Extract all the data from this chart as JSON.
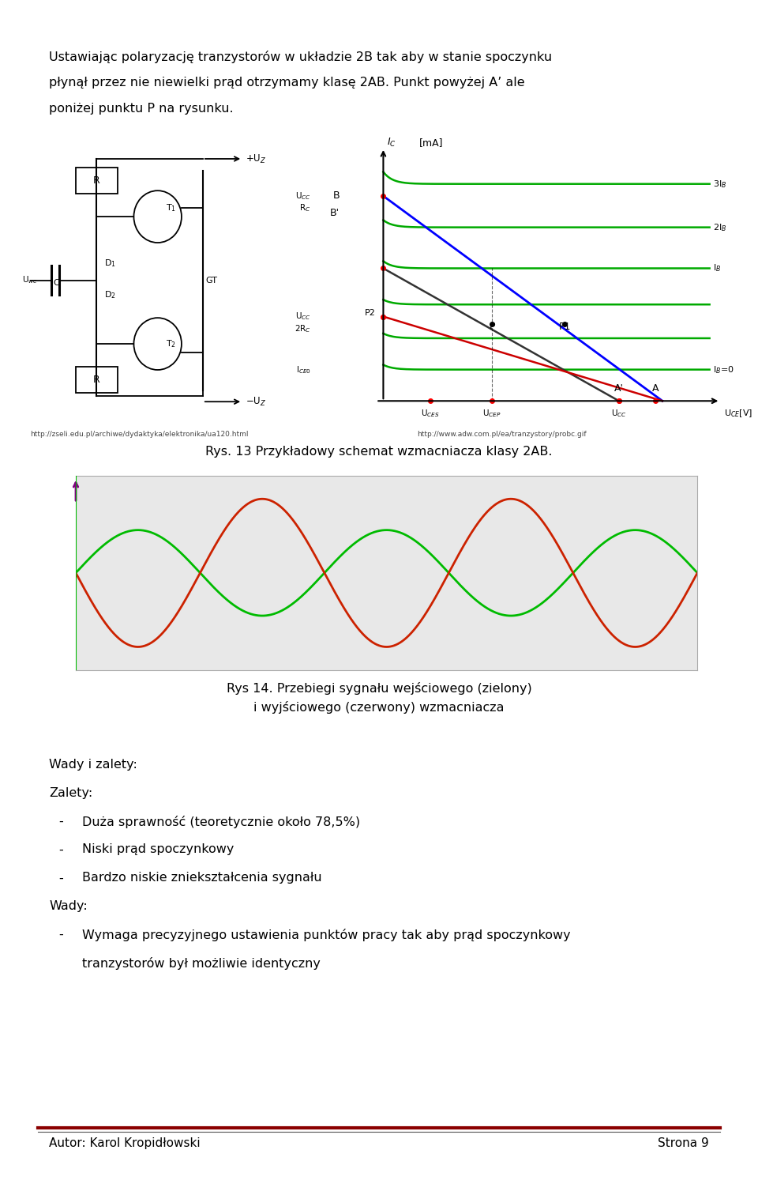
{
  "page_bg": "#ffffff",
  "text_color": "#000000",
  "header_text_line1": "Ustawiając polaryzację tranzystorów w układzie 2B tak aby w stanie spoczynku",
  "header_text_line2": "płynął przez nie niewielki prąd otrzymamy klasę 2AB. Punkt powyżej A’ ale",
  "header_text_line3": "poniżej punktu P na rysunku.",
  "fig14_caption_line1": "Rys 14. Przebiegi sygnału wejściowego (zielony)",
  "fig14_caption_line2": "i wyjściowego (czerwony) wzmacniacza",
  "fig13_caption": "Rys. 13 Przykładowy schemat wzmacniacza klasy 2AB.",
  "url1": "http://zseli.edu.pl/archiwe/dydaktyka/elektronika/ua120.html",
  "url2": "http://www.adw.com.pl/ea/tranzystory/probc.gif",
  "wady_zalety_title": "Wady i zalety:",
  "zalety_title": "Zalety:",
  "zalety_items": [
    "Duża sprawność (teoretycznie około 78,5%)",
    "Niski prąd spoczynkowy",
    "Bardzo niskie zniekształcenia sygnału"
  ],
  "wady_title": "Wady:",
  "wady_item_line1": "Wymaga precyzyjnego ustawienia punktów pracy tak aby prąd spoczynkowy",
  "wady_item_line2": "tranzystorów był możliwie identyczny",
  "footer_left": "Autor: Karol Kropidłowski",
  "footer_right": "Strona 9",
  "sine_green_color": "#00bb00",
  "sine_red_color": "#cc2200",
  "plot_bg": "#e8e8e8",
  "grid_color": "#bbbbbb",
  "sine_amplitude_green": 0.55,
  "sine_amplitude_red": 0.95,
  "num_cycles": 2.5,
  "footer_line_color1": "#8b0000",
  "footer_line_color2": "#555555",
  "font_size_body": 11.5,
  "font_size_url": 6.5,
  "font_size_footer": 11.0
}
